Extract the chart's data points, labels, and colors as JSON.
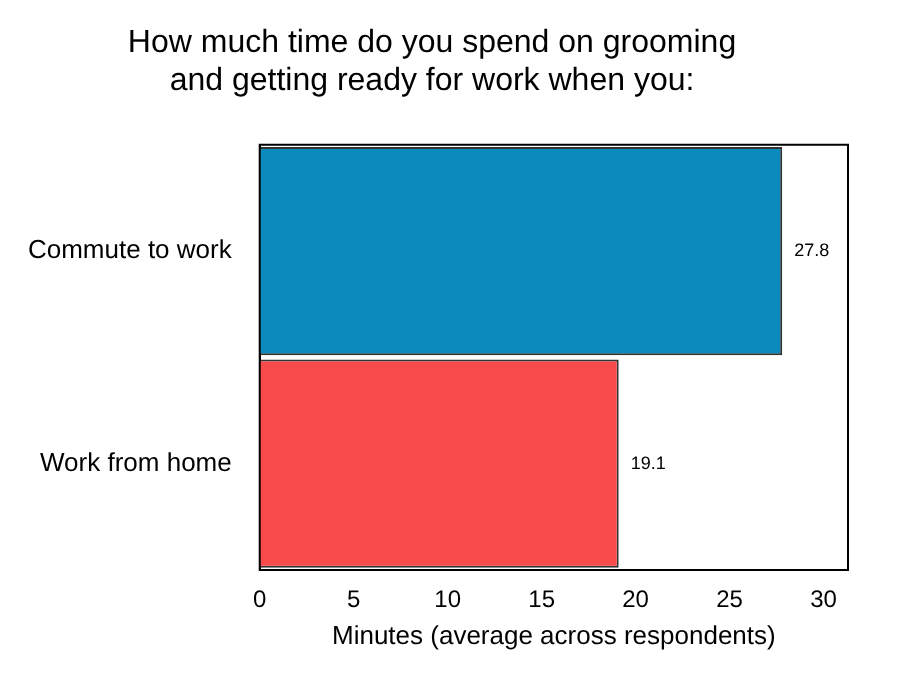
{
  "chart_data": {
    "type": "bar",
    "orientation": "horizontal",
    "title": "How much time do you spend on grooming\nand getting ready for work when you:",
    "xlabel": "Minutes (average across respondents)",
    "categories": [
      "Commute to work",
      "Work from home"
    ],
    "values": [
      27.8,
      19.1
    ],
    "colors": [
      "#0b8bbd",
      "#f94a4b"
    ],
    "xlim": [
      0,
      31.3
    ],
    "xticks": [
      0,
      5,
      10,
      15,
      20,
      25,
      30
    ],
    "grid": false,
    "data_labels": true
  }
}
